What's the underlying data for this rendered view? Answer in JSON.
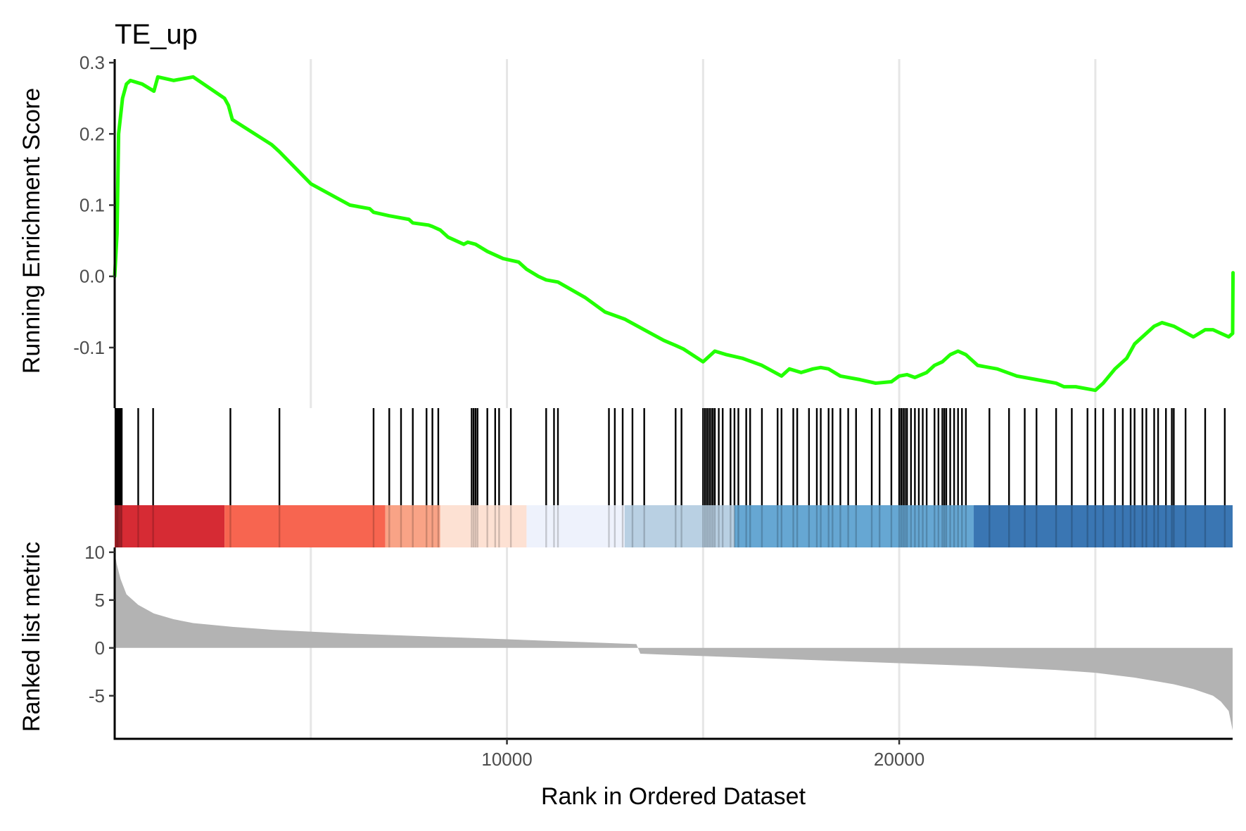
{
  "chart_data": {
    "type": "line",
    "title": "TE_up",
    "xlabel": "Rank in Ordered Dataset",
    "xlim": [
      0,
      28500
    ],
    "x_ticks": [
      10000,
      20000
    ],
    "x_tick_labels": [
      "10000",
      "20000"
    ],
    "x_grid": [
      5000,
      10000,
      15000,
      20000,
      25000
    ],
    "grid": "vertical major gridlines only",
    "legend": "none",
    "enrichment": {
      "ylabel": "Running Enrichment Score",
      "ylim": [
        -0.185,
        0.305
      ],
      "y_ticks": [
        0.3,
        0.2,
        0.1,
        0.0,
        -0.1
      ],
      "y_tick_labels": [
        "0.3",
        "0.2",
        "0.1",
        "0.0",
        "-0.1"
      ],
      "line_color": "#22ff00",
      "x": [
        0,
        60,
        100,
        200,
        300,
        400,
        700,
        1000,
        1100,
        1500,
        2000,
        2800,
        2900,
        3000,
        4000,
        4100,
        4200,
        5000,
        6000,
        6500,
        6600,
        7000,
        7500,
        7600,
        8000,
        8100,
        8300,
        8500,
        8900,
        9000,
        9200,
        9500,
        9900,
        10300,
        10500,
        10800,
        11000,
        11300,
        12000,
        12500,
        13000,
        13500,
        14000,
        14300,
        14500,
        15000,
        15100,
        15200,
        15300,
        15600,
        16000,
        16500,
        17000,
        17100,
        17200,
        17500,
        17800,
        18000,
        18200,
        18500,
        19000,
        19400,
        19800,
        20000,
        20200,
        20400,
        20700,
        20900,
        21100,
        21300,
        21500,
        21700,
        22000,
        22500,
        23000,
        23500,
        24000,
        24200,
        24500,
        25000,
        25200,
        25500,
        25800,
        26000,
        26200,
        26500,
        26700,
        27000,
        27500,
        27800,
        28000,
        28200,
        28400,
        28500,
        28510
      ],
      "y": [
        0.0,
        0.06,
        0.2,
        0.25,
        0.27,
        0.275,
        0.27,
        0.26,
        0.28,
        0.275,
        0.28,
        0.25,
        0.24,
        0.22,
        0.185,
        0.18,
        0.175,
        0.13,
        0.1,
        0.095,
        0.09,
        0.085,
        0.08,
        0.075,
        0.072,
        0.07,
        0.065,
        0.055,
        0.045,
        0.048,
        0.045,
        0.035,
        0.025,
        0.02,
        0.01,
        0.0,
        -0.005,
        -0.008,
        -0.03,
        -0.05,
        -0.06,
        -0.075,
        -0.09,
        -0.097,
        -0.102,
        -0.12,
        -0.115,
        -0.11,
        -0.105,
        -0.11,
        -0.115,
        -0.125,
        -0.14,
        -0.135,
        -0.13,
        -0.135,
        -0.13,
        -0.128,
        -0.13,
        -0.14,
        -0.145,
        -0.15,
        -0.148,
        -0.14,
        -0.138,
        -0.142,
        -0.135,
        -0.125,
        -0.12,
        -0.11,
        -0.105,
        -0.11,
        -0.125,
        -0.13,
        -0.14,
        -0.145,
        -0.15,
        -0.155,
        -0.155,
        -0.16,
        -0.15,
        -0.13,
        -0.115,
        -0.095,
        -0.085,
        -0.07,
        -0.065,
        -0.07,
        -0.085,
        -0.075,
        -0.075,
        -0.08,
        -0.085,
        -0.08,
        0.005
      ]
    },
    "hits": {
      "color": "#000000",
      "positions": [
        20,
        40,
        60,
        80,
        100,
        130,
        160,
        180,
        600,
        980,
        2950,
        4200,
        6600,
        7000,
        7300,
        7600,
        7950,
        8100,
        8250,
        9100,
        9150,
        9200,
        9250,
        9500,
        9700,
        9800,
        10100,
        11000,
        11200,
        11300,
        12600,
        12750,
        12950,
        13200,
        13500,
        14300,
        14450,
        15000,
        15050,
        15100,
        15150,
        15200,
        15250,
        15300,
        15400,
        15500,
        15700,
        15800,
        15900,
        16100,
        16200,
        16500,
        16900,
        17000,
        17300,
        17400,
        17700,
        17900,
        18000,
        18200,
        18300,
        18500,
        18700,
        18900,
        19300,
        19500,
        19800,
        20000,
        20050,
        20100,
        20150,
        20200,
        20300,
        20400,
        20500,
        20600,
        20700,
        20900,
        21000,
        21100,
        21150,
        21200,
        21300,
        21400,
        21500,
        21600,
        21700,
        22300,
        22800,
        23200,
        23500,
        24000,
        24400,
        24800,
        25000,
        25200,
        25500,
        25700,
        25900,
        26000,
        26200,
        26300,
        26500,
        26600,
        26800,
        26950,
        27000,
        27300,
        27800,
        28300
      ]
    },
    "color_bar": {
      "segments": [
        {
          "from": 0,
          "to": 2800,
          "color": "#d62b34"
        },
        {
          "from": 2800,
          "to": 6900,
          "color": "#f76550"
        },
        {
          "from": 6900,
          "to": 8300,
          "color": "#f9a386"
        },
        {
          "from": 8300,
          "to": 10500,
          "color": "#fde1d3"
        },
        {
          "from": 10500,
          "to": 13000,
          "color": "#eef2fc"
        },
        {
          "from": 13000,
          "to": 15800,
          "color": "#b9d0e3"
        },
        {
          "from": 15800,
          "to": 21900,
          "color": "#66a7d3"
        },
        {
          "from": 21900,
          "to": 28500,
          "color": "#3a76b3"
        }
      ]
    },
    "ranked_metric": {
      "ylabel": "Ranked list metric",
      "ylim": [
        -9.5,
        10.5
      ],
      "y_ticks": [
        10,
        5,
        0,
        -5
      ],
      "y_tick_labels": [
        "10",
        "5",
        "0",
        "-5"
      ],
      "fill_color": "#b3b3b3",
      "x": [
        0,
        50,
        150,
        300,
        600,
        1000,
        1500,
        2000,
        3000,
        4000,
        6000,
        8000,
        10000,
        12000,
        13300,
        13400,
        14000,
        16000,
        18000,
        20000,
        22000,
        24000,
        25000,
        26000,
        27000,
        27500,
        28000,
        28200,
        28400,
        28500
      ],
      "y": [
        10.0,
        8.8,
        7.2,
        5.6,
        4.5,
        3.6,
        3.0,
        2.6,
        2.2,
        1.9,
        1.5,
        1.2,
        0.9,
        0.6,
        0.4,
        -0.6,
        -0.7,
        -1.0,
        -1.3,
        -1.6,
        -1.9,
        -2.3,
        -2.6,
        -3.1,
        -3.8,
        -4.3,
        -5.0,
        -5.6,
        -6.6,
        -8.6
      ]
    }
  }
}
